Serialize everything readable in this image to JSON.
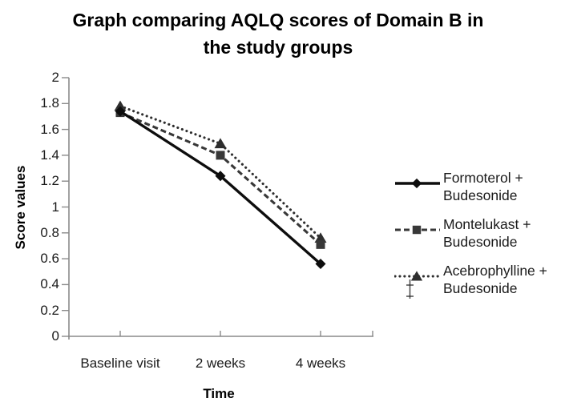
{
  "title": {
    "line1": "Graph comparing AQLQ scores of Domain B in",
    "line2": "the study groups"
  },
  "chart_data": {
    "type": "line",
    "title": "Graph comparing AQLQ scores of Domain B in the study groups",
    "xlabel": "Time",
    "ylabel": "Score values",
    "categories": [
      "Baseline visit",
      "2 weeks",
      "4 weeks"
    ],
    "series": [
      {
        "name": "Formoterol + Budesonide",
        "values": [
          1.74,
          1.24,
          0.56
        ],
        "line_style": "solid",
        "marker": "diamond",
        "color": "#0d0d0d"
      },
      {
        "name": "Montelukast + Budesonide",
        "values": [
          1.73,
          1.4,
          0.71
        ],
        "line_style": "dashed",
        "marker": "square",
        "color": "#383838"
      },
      {
        "name": "Acebrophylline + Budesonide",
        "values": [
          1.78,
          1.49,
          0.76
        ],
        "line_style": "dotted",
        "marker": "triangle",
        "color": "#2e2e2e"
      }
    ],
    "ylim": [
      0,
      2
    ],
    "ytick_step": 0.2,
    "ytick_labels": [
      "0",
      "0.2",
      "0.4",
      "0.6",
      "0.8",
      "1",
      "1.2",
      "1.4",
      "1.6",
      "1.8",
      "2"
    ],
    "grid": false,
    "legend_position": "right"
  },
  "legend": {
    "items": [
      {
        "line1": "Formoterol +",
        "line2": "Budesonide",
        "marker": "diamond",
        "line_style": "solid"
      },
      {
        "line1": "Montelukast +",
        "line2": "Budesonide",
        "marker": "square",
        "line_style": "dashed"
      },
      {
        "line1": "Acebrophylline +",
        "line2": "Budesonide",
        "marker": "triangle",
        "line_style": "dotted"
      }
    ]
  },
  "icons": {
    "text_cursor": "‡"
  },
  "colors": {
    "background": "#ffffff",
    "axis": "#8a8a8a",
    "text": "#1a1a1a",
    "title": "#000000"
  }
}
